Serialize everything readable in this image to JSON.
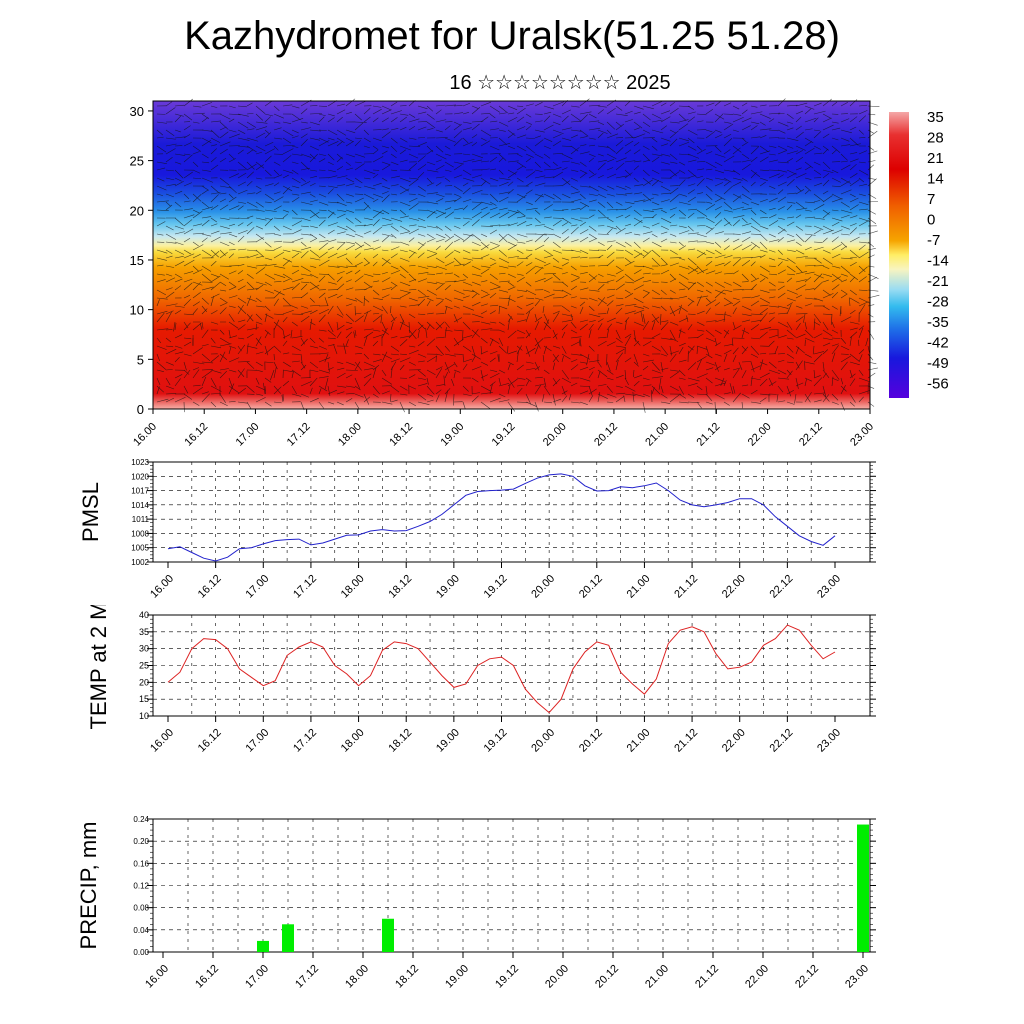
{
  "header": {
    "title": "Kazhydromet for Uralsk(51.25 51.28)",
    "subtitle": "16 ☆☆☆☆☆☆☆☆ 2025"
  },
  "colors": {
    "pmsl_line": "#2222cc",
    "temp_line": "#dd2222",
    "precip_bar": "#00ee00",
    "colorbar_max": "#f4a8a8",
    "colorbar_warm": "#dd0000",
    "colorbar_mid": "#ffee66",
    "colorbar_cool": "#33bbee",
    "colorbar_min": "#5500dd"
  },
  "chart_data": [
    {
      "id": "cross_section",
      "type": "heatmap",
      "title": "",
      "xlabel": "",
      "ylabel": "",
      "ylim": [
        0,
        31
      ],
      "y_ticks": [
        0,
        5,
        10,
        15,
        20,
        25,
        30
      ],
      "x_ticks": [
        "16.00",
        "16.12",
        "17.00",
        "17.12",
        "18.00",
        "18.12",
        "19.00",
        "19.12",
        "20.00",
        "20.12",
        "21.00",
        "21.12",
        "22.00",
        "22.12",
        "23.00"
      ],
      "colorbar_levels": [
        "35",
        "28",
        "21",
        "14",
        "7",
        "0",
        "-7",
        "-14",
        "-21",
        "-28",
        "-35",
        "-42",
        "-49",
        "-56"
      ],
      "overlay": "wind vectors"
    },
    {
      "id": "pmsl",
      "type": "line",
      "ylabel": "PMSL",
      "ylim": [
        1002,
        1023
      ],
      "y_ticks": [
        "1002",
        "1005",
        "1008",
        "1011",
        "1014",
        "1017",
        "1020",
        "1023"
      ],
      "x_ticks": [
        "16.00",
        "16.12",
        "17.00",
        "17.12",
        "18.00",
        "18.12",
        "19.00",
        "19.12",
        "20.00",
        "20.12",
        "21.00",
        "21.12",
        "22.00",
        "22.12",
        "23.00"
      ],
      "x": [
        0,
        3,
        6,
        9,
        12,
        15,
        18,
        21,
        24,
        27,
        30,
        33,
        36,
        39,
        42,
        45,
        48,
        51,
        54,
        57,
        60,
        63,
        66,
        69,
        72,
        75,
        78,
        81,
        84,
        87,
        90,
        93,
        96,
        99,
        102,
        105,
        108,
        111,
        114,
        117,
        120,
        123,
        126,
        129,
        132,
        135,
        138,
        141,
        144,
        147,
        150,
        153,
        156,
        159,
        162,
        165,
        168
      ],
      "values": [
        1004.8,
        1005.2,
        1004.0,
        1002.8,
        1002.2,
        1003.0,
        1004.8,
        1005.0,
        1005.8,
        1006.5,
        1006.7,
        1006.8,
        1005.6,
        1006.0,
        1006.8,
        1007.6,
        1007.7,
        1008.5,
        1008.8,
        1008.5,
        1008.6,
        1009.5,
        1010.5,
        1012.0,
        1014.0,
        1016.0,
        1016.8,
        1017.0,
        1017.1,
        1017.3,
        1018.5,
        1019.6,
        1020.3,
        1020.5,
        1020.0,
        1018.0,
        1016.9,
        1017.0,
        1017.8,
        1017.6,
        1018.0,
        1018.6,
        1017.0,
        1015.0,
        1014.0,
        1013.6,
        1014.0,
        1014.5,
        1015.3,
        1015.3,
        1014.0,
        1011.5,
        1009.5,
        1007.5,
        1006.3,
        1005.5,
        1007.5
      ]
    },
    {
      "id": "temp2m",
      "type": "line",
      "ylabel": "TEMP at 2 M",
      "ylim": [
        10,
        40
      ],
      "y_ticks": [
        "10",
        "15",
        "20",
        "25",
        "30",
        "35",
        "40"
      ],
      "x_ticks": [
        "16.00",
        "16.12",
        "17.00",
        "17.12",
        "18.00",
        "18.12",
        "19.00",
        "19.12",
        "20.00",
        "20.12",
        "21.00",
        "21.12",
        "22.00",
        "22.12",
        "23.00"
      ],
      "x": [
        0,
        3,
        6,
        9,
        12,
        15,
        18,
        21,
        24,
        27,
        30,
        33,
        36,
        39,
        42,
        45,
        48,
        51,
        54,
        57,
        60,
        63,
        66,
        69,
        72,
        75,
        78,
        81,
        84,
        87,
        90,
        93,
        96,
        99,
        102,
        105,
        108,
        111,
        114,
        117,
        120,
        123,
        126,
        129,
        132,
        135,
        138,
        141,
        144,
        147,
        150,
        153,
        156,
        159,
        162,
        165,
        168
      ],
      "values": [
        20,
        23,
        30,
        33,
        32.7,
        30,
        24,
        21.5,
        19,
        20.5,
        28,
        30.5,
        32,
        30.5,
        25,
        22.5,
        19,
        22,
        29.5,
        32,
        31.5,
        30,
        26,
        22,
        18.5,
        19.5,
        25,
        27,
        27.5,
        25,
        18,
        14,
        11,
        15,
        24,
        29,
        32,
        31,
        23,
        19.5,
        16.5,
        21,
        31.5,
        35.5,
        36.5,
        35,
        28.5,
        24,
        24.5,
        26,
        31,
        33,
        37,
        35.5,
        31,
        27,
        29
      ]
    },
    {
      "id": "precip",
      "type": "bar",
      "ylabel": "PRECIP, mm",
      "ylim": [
        0,
        0.24
      ],
      "y_ticks": [
        "0.00",
        "0.04",
        "0.08",
        "0.12",
        "0.16",
        "0.20",
        "0.24"
      ],
      "x_ticks": [
        "16.00",
        "16.12",
        "17.00",
        "17.12",
        "18.00",
        "18.12",
        "19.00",
        "19.12",
        "20.00",
        "20.12",
        "21.00",
        "21.12",
        "22.00",
        "22.12",
        "23.00"
      ],
      "x": [
        24,
        30,
        54,
        168
      ],
      "values": [
        0.02,
        0.05,
        0.06,
        0.23
      ]
    }
  ]
}
